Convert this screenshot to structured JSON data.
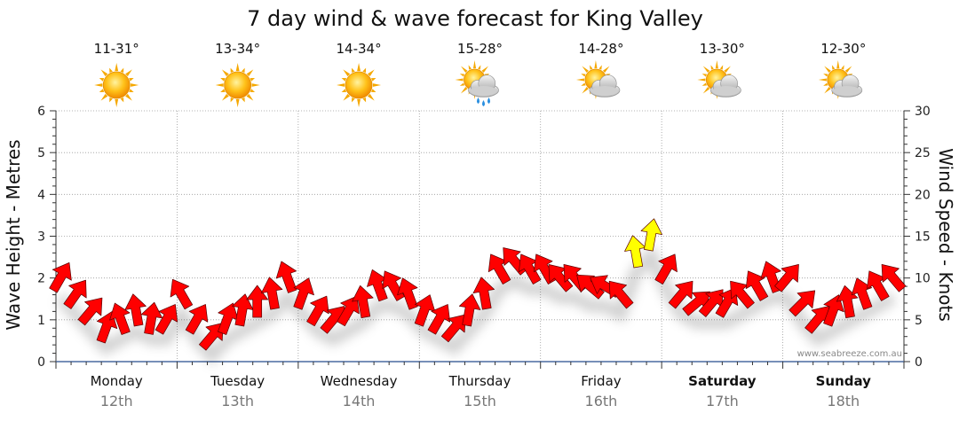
{
  "chart_data": {
    "type": "line",
    "title": "7 day wind & wave forecast for King Valley",
    "ylabel": "Wave Height - Metres",
    "y2label": "Wind Speed - Knots",
    "ylim": [
      0,
      6
    ],
    "y2lim": [
      0,
      30
    ],
    "yticks": [
      "0",
      "1",
      "2",
      "3",
      "4",
      "5",
      "6"
    ],
    "y2ticks": [
      "0",
      "5",
      "10",
      "15",
      "20",
      "25",
      "30"
    ],
    "grid": true,
    "days": [
      {
        "name": "Monday",
        "date": "12th",
        "temp": "11-31°",
        "icon": "sunny-icon",
        "bold": false
      },
      {
        "name": "Tuesday",
        "date": "13th",
        "temp": "13-34°",
        "icon": "sunny-icon",
        "bold": false
      },
      {
        "name": "Wednesday",
        "date": "14th",
        "temp": "14-34°",
        "icon": "sunny-icon",
        "bold": false
      },
      {
        "name": "Thursday",
        "date": "15th",
        "temp": "15-28°",
        "icon": "showers-icon",
        "bold": false
      },
      {
        "name": "Friday",
        "date": "16th",
        "temp": "14-28°",
        "icon": "partly-cloudy-icon",
        "bold": false
      },
      {
        "name": "Saturday",
        "date": "17th",
        "temp": "13-30°",
        "icon": "partly-cloudy-icon",
        "bold": true
      },
      {
        "name": "Sunday",
        "date": "18th",
        "temp": "12-30°",
        "icon": "partly-cloudy-icon",
        "bold": true
      }
    ],
    "series": [
      {
        "name": "Wind Speed - Knots",
        "color_low": "#ff0000",
        "color_high": "#ffff00",
        "day_offsets": [
          0.0,
          0.125,
          0.25,
          0.375,
          0.5,
          0.625,
          0.75,
          0.875
        ],
        "values": [
          [
            10,
            8,
            6,
            4,
            5,
            6,
            5,
            5
          ],
          [
            8,
            5,
            3,
            5,
            6,
            7,
            8,
            10
          ],
          [
            8,
            6,
            5,
            6,
            7,
            9,
            9,
            8
          ],
          [
            6,
            5,
            4,
            6,
            8,
            11,
            12,
            11
          ],
          [
            11,
            10,
            10,
            9,
            9,
            8,
            13,
            15
          ],
          [
            11,
            8,
            7,
            7,
            7,
            8,
            9,
            10
          ],
          [
            10,
            7,
            5,
            6,
            7,
            8,
            9,
            10
          ]
        ],
        "directions": [
          [
            30,
            35,
            40,
            20,
            340,
            350,
            10,
            30
          ],
          [
            330,
            30,
            40,
            20,
            10,
            0,
            350,
            340
          ],
          [
            20,
            30,
            40,
            30,
            350,
            340,
            330,
            340
          ],
          [
            20,
            30,
            40,
            10,
            350,
            330,
            320,
            330
          ],
          [
            330,
            320,
            320,
            310,
            300,
            320,
            350,
            10
          ],
          [
            30,
            40,
            50,
            40,
            30,
            320,
            330,
            340
          ],
          [
            40,
            45,
            40,
            20,
            350,
            340,
            330,
            320
          ]
        ]
      }
    ],
    "credit": "www.seabreeze.com.au"
  }
}
